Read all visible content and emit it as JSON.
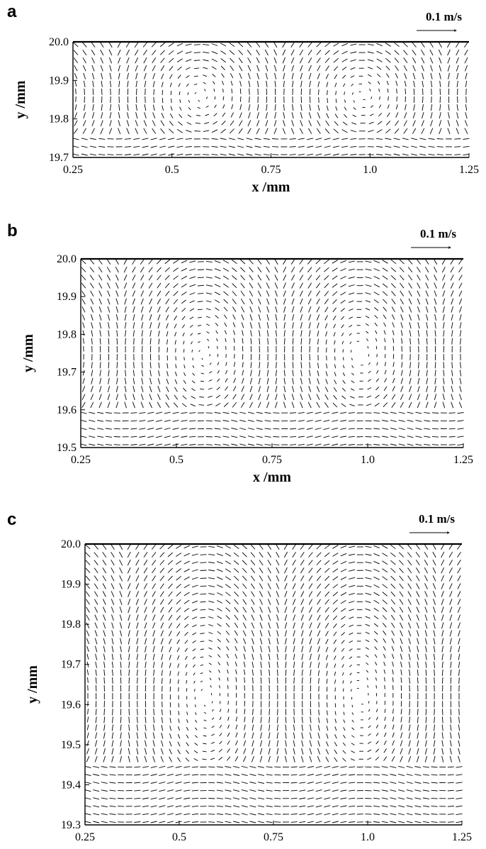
{
  "chart_data": [
    {
      "type": "vector-field",
      "panel_label": "a",
      "xlabel": "x /mm",
      "ylabel": "y /mm",
      "xlim": [
        0.25,
        1.25
      ],
      "ylim": [
        19.7,
        20.0
      ],
      "x_ticks": [
        0.25,
        0.5,
        0.75,
        1.0,
        1.25
      ],
      "x_tick_labels": [
        "0.25",
        "0.5",
        "0.75",
        "1.0",
        "1.25"
      ],
      "y_ticks": [
        19.7,
        19.8,
        19.9,
        20.0
      ],
      "y_tick_labels": [
        "19.7",
        "19.8",
        "19.9",
        "20.0"
      ],
      "reference_vector": {
        "label": "0.1 m/s",
        "magnitude": 0.1
      },
      "vortex_centers_x": [
        0.57,
        0.98
      ],
      "vortex_center_y": 19.86,
      "vortex_period_x": 0.42,
      "near_wall_flow_direction": "+x"
    },
    {
      "type": "vector-field",
      "panel_label": "b",
      "xlabel": "x /mm",
      "ylabel": "y /mm",
      "xlim": [
        0.25,
        1.25
      ],
      "ylim": [
        19.5,
        20.0
      ],
      "x_ticks": [
        0.25,
        0.5,
        0.75,
        1.0,
        1.25
      ],
      "x_tick_labels": [
        "0.25",
        "0.5",
        "0.75",
        "1.0",
        "1.25"
      ],
      "y_ticks": [
        19.5,
        19.6,
        19.7,
        19.8,
        19.9,
        20.0
      ],
      "y_tick_labels": [
        "19.5",
        "19.6",
        "19.7",
        "19.8",
        "19.9",
        "20.0"
      ],
      "reference_vector": {
        "label": "0.1 m/s",
        "magnitude": 0.1
      },
      "vortex_centers_x": [
        0.57,
        0.98
      ],
      "vortex_center_y": 19.75,
      "vortex_period_x": 0.42,
      "near_wall_flow_direction": "+x"
    },
    {
      "type": "vector-field",
      "panel_label": "c",
      "xlabel": "x /mm",
      "ylabel": "y /mm",
      "xlim": [
        0.25,
        1.25
      ],
      "ylim": [
        19.3,
        20.0
      ],
      "x_ticks": [
        0.25,
        0.5,
        0.75,
        1.0,
        1.25
      ],
      "x_tick_labels": [
        "0.25",
        "0.5",
        "0.75",
        "1.0",
        "1.25"
      ],
      "y_ticks": [
        19.3,
        19.4,
        19.5,
        19.6,
        19.7,
        19.8,
        19.9,
        20.0
      ],
      "y_tick_labels": [
        "19.3",
        "19.4",
        "19.5",
        "19.6",
        "19.7",
        "19.8",
        "19.9",
        "20.0"
      ],
      "reference_vector": {
        "label": "0.1 m/s",
        "magnitude": 0.1
      },
      "vortex_centers_x": [
        0.57,
        0.98
      ],
      "vortex_center_y": 19.62,
      "vortex_period_x": 0.42,
      "near_wall_flow_direction": "+x"
    }
  ]
}
